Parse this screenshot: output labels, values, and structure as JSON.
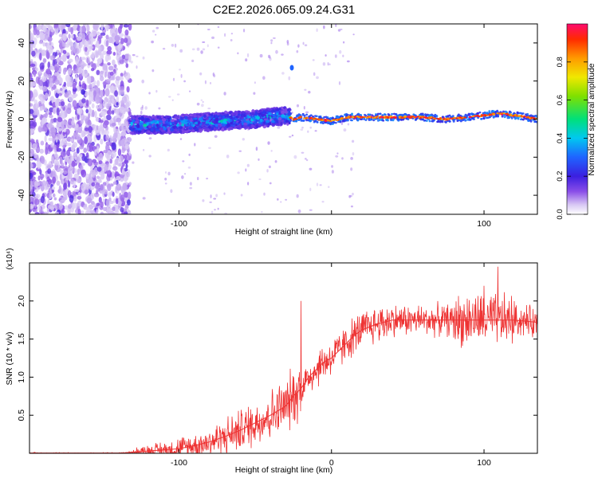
{
  "title": "C2E2.2026.065.09.24.G31",
  "chart_data": [
    {
      "type": "heatmap",
      "xlabel": "Height of straight line (km)",
      "ylabel": "Frequency (Hz)",
      "xlim": [
        -198,
        135
      ],
      "ylim": [
        -50,
        50
      ],
      "xticks": [
        -100,
        0,
        100
      ],
      "xtick_labels": [
        "-100",
        "",
        "100"
      ],
      "yticks": [
        -40,
        -20,
        0,
        20,
        40
      ],
      "ytick_labels": [
        "-40",
        "-20",
        "0",
        "20",
        "40"
      ],
      "colorbar": {
        "label": "Normalized spectral amplitude",
        "range": [
          0,
          1
        ],
        "ticks": [
          0.0,
          0.2,
          0.4,
          0.6,
          0.8
        ],
        "tick_labels": [
          "0.0",
          "0.2",
          "0.4",
          "0.6",
          "0.8"
        ]
      },
      "ridge": {
        "x": [
          -130,
          -110,
          -90,
          -70,
          -50,
          -40,
          -30,
          -25,
          -20,
          -10,
          0,
          10,
          20,
          40,
          60,
          75,
          90,
          100,
          110,
          120,
          135
        ],
        "y": [
          -3,
          -3,
          -2,
          -1,
          0,
          1,
          2,
          0,
          1,
          0,
          -1,
          1,
          1,
          1,
          1,
          0,
          1,
          2,
          3,
          2,
          0
        ]
      },
      "grid": false
    },
    {
      "type": "line",
      "xlabel": "Height of straight line (km)",
      "ylabel": "SNR (10 * v/v)",
      "y_multiplier": "(x10⁴)",
      "xlim": [
        -198,
        135
      ],
      "ylim": [
        0,
        2.5
      ],
      "xticks": [
        -100,
        0,
        100
      ],
      "xtick_labels": [
        "-100",
        "0",
        "100"
      ],
      "yticks": [
        0.5,
        1.0,
        1.5,
        2.0
      ],
      "ytick_labels": [
        "0.5",
        "1.0",
        "1.5",
        "2.0"
      ],
      "color": "#ee3333",
      "x": [
        -198,
        -160,
        -140,
        -120,
        -100,
        -90,
        -80,
        -70,
        -60,
        -50,
        -40,
        -30,
        -25,
        -20,
        -15,
        -10,
        -5,
        0,
        5,
        10,
        15,
        20,
        30,
        40,
        50,
        60,
        70,
        80,
        90,
        100,
        110,
        120,
        135
      ],
      "y": [
        0.0,
        0.0,
        0.0,
        0.03,
        0.06,
        0.1,
        0.15,
        0.22,
        0.3,
        0.4,
        0.5,
        0.62,
        0.75,
        0.85,
        1.0,
        1.1,
        1.2,
        1.25,
        1.35,
        1.45,
        1.55,
        1.62,
        1.7,
        1.75,
        1.75,
        1.75,
        1.75,
        1.75,
        1.75,
        1.75,
        1.75,
        1.75,
        1.72
      ],
      "annotations": [
        {
          "x": -20,
          "y": 2.0
        },
        {
          "x": 100,
          "y": 2.2
        },
        {
          "x": 109,
          "y": 2.45
        }
      ],
      "grid": false
    }
  ]
}
